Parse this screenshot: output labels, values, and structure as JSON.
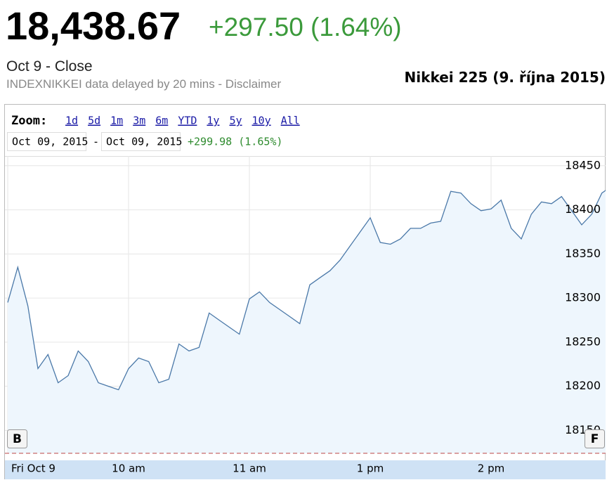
{
  "quote": {
    "price": "18,438.67",
    "change": "+297.50 (1.64%)",
    "status": "Oct 9 - Close",
    "source": "INDEXNIKKEI data delayed by 20 mins - Disclaimer"
  },
  "zoom": {
    "label": "Zoom:",
    "options": [
      "1d",
      "5d",
      "1m",
      "3m",
      "6m",
      "YTD",
      "1y",
      "5y",
      "10y",
      "All"
    ]
  },
  "range": {
    "from": "Oct 09, 2015",
    "separator": "-",
    "to": "Oct 09, 2015",
    "change": "+299.98 (1.65%)"
  },
  "nav_buttons": [
    "B",
    "F"
  ],
  "chart_data": {
    "type": "line",
    "title": "Nikkei 225 (9. října 2015)",
    "x": [
      0,
      1,
      2,
      3,
      4,
      5,
      6,
      7,
      8,
      9,
      10,
      11,
      12,
      13,
      14,
      15,
      16,
      17,
      18,
      19,
      20,
      21,
      22,
      23,
      24,
      25,
      26,
      27,
      28,
      29,
      30,
      31,
      32,
      33,
      34,
      35,
      36,
      37,
      38,
      39,
      40,
      41,
      42,
      43,
      44,
      45,
      46,
      47,
      48,
      49,
      50,
      51,
      52,
      53,
      54,
      55,
      56,
      57,
      58,
      59,
      60
    ],
    "values": [
      18295,
      18335,
      18291,
      18220,
      18236,
      18204,
      18212,
      18240,
      18228,
      18204,
      18200,
      18196,
      18220,
      18232,
      18228,
      18204,
      18208,
      18248,
      18240,
      18244,
      18283,
      18275,
      18267,
      18259,
      18299,
      18307,
      18295,
      18287,
      18279,
      18271,
      18315,
      18323,
      18331,
      18343,
      18359,
      18375,
      18391,
      18363,
      18361,
      18367,
      18379,
      18379,
      18385,
      18387,
      18421,
      18419,
      18407,
      18399,
      18401,
      18411,
      18379,
      18367,
      18395,
      18409,
      18407,
      18415,
      18399,
      18383,
      18395,
      18419,
      18427
    ],
    "color": "#4a78a8",
    "fill": "#eef6fd",
    "xlim": [
      0,
      60
    ],
    "xticks": [
      {
        "value": 0,
        "label": "Fri Oct 9"
      },
      {
        "value": 12,
        "label": "10 am"
      },
      {
        "value": 24,
        "label": "11 am"
      },
      {
        "value": 36,
        "label": "1 pm"
      },
      {
        "value": 48,
        "label": "2 pm"
      }
    ],
    "ylim": [
      18124,
      18461
    ],
    "yticks": [
      18150,
      18200,
      18250,
      18300,
      18350,
      18400,
      18450
    ],
    "grid": true
  }
}
